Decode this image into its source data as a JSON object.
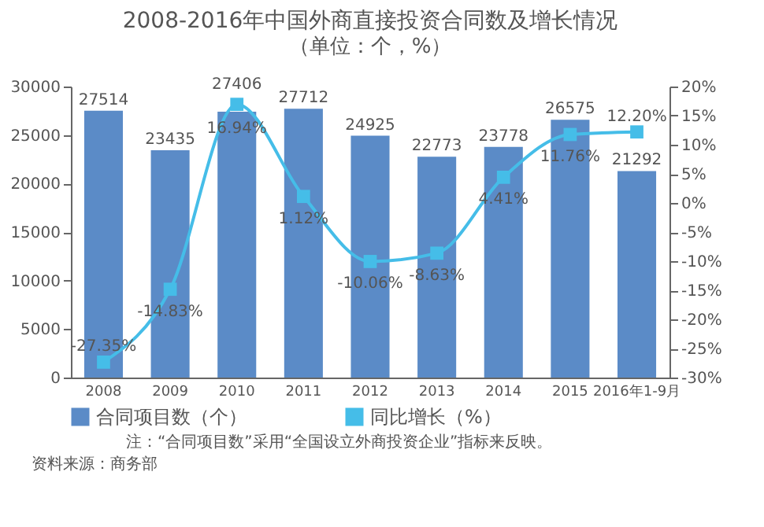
{
  "chart_data": {
    "type": "bar",
    "title": "2008-2016年中国外商直接投资合同数及增长情况",
    "subtitle": "（单位：个，%）",
    "categories": [
      "2008",
      "2009",
      "2010",
      "2011",
      "2012",
      "2013",
      "2014",
      "2015",
      "2016年1-9月"
    ],
    "series": [
      {
        "name": "合同项目数（个）",
        "color": "#5b8bc7",
        "values": [
          27514,
          23435,
          27406,
          27712,
          24925,
          22773,
          23778,
          26575,
          21292
        ],
        "value_labels": [
          "27514",
          "23435",
          "27406",
          "27712",
          "24925",
          "22773",
          "23778",
          "26575",
          "21292"
        ]
      },
      {
        "name": "同比增长（%）",
        "type": "line",
        "axis": "y2",
        "color": "#45bde8",
        "marker": "square",
        "values": [
          -27.35,
          -14.83,
          16.94,
          1.12,
          -10.06,
          -8.63,
          4.41,
          11.76,
          12.2
        ],
        "value_labels": [
          "-27.35%",
          "-14.83%",
          "16.94%",
          "1.12%",
          "-10.06%",
          "-8.63%",
          "4.41%",
          "11.76%",
          "12.20%"
        ]
      }
    ],
    "ylim": [
      0,
      30000
    ],
    "yticks": [
      0,
      5000,
      10000,
      15000,
      20000,
      25000,
      30000
    ],
    "y2lim": [
      -30,
      20
    ],
    "y2ticks": [
      {
        "value": -30,
        "label": "-30%"
      },
      {
        "value": -25,
        "label": "-25%"
      },
      {
        "value": -20,
        "label": "-20%"
      },
      {
        "value": -15,
        "label": "-15%"
      },
      {
        "value": -10,
        "label": "-10%"
      },
      {
        "value": -5,
        "label": "-5%"
      },
      {
        "value": 0,
        "label": "0%"
      },
      {
        "value": 5,
        "label": "5%"
      },
      {
        "value": 10,
        "label": "10%"
      },
      {
        "value": 15,
        "label": "15%"
      },
      {
        "value": 20,
        "label": "20%"
      }
    ],
    "legend": "bottom",
    "annotations": [
      "注：“合同项目数”采用“全国设立外商投资企业”指标来反映。",
      "资料来源：商务部"
    ]
  }
}
